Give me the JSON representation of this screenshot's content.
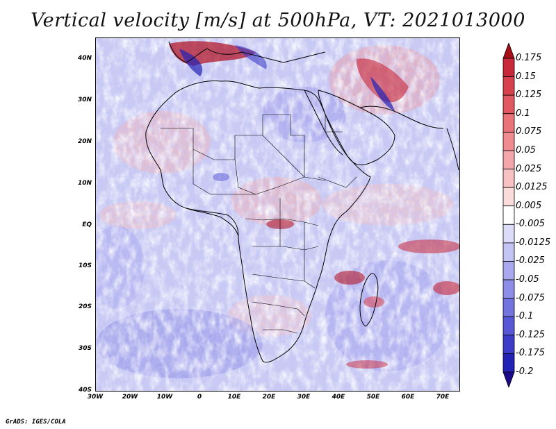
{
  "title": "Vertical velocity [m/s] at 500hPa, VT: 2021013000",
  "credit": "GrADS: IGES/COLA",
  "map": {
    "region": "Africa",
    "lat_ticks": [
      "40N",
      "30N",
      "20N",
      "10N",
      "EQ",
      "10S",
      "20S",
      "30S",
      "40S"
    ],
    "lon_ticks": [
      "30W",
      "20W",
      "10W",
      "0",
      "10E",
      "20E",
      "30E",
      "40E",
      "50E",
      "60E",
      "70E"
    ]
  },
  "colorbar": {
    "levels": [
      "0.175",
      "0.15",
      "0.125",
      "0.1",
      "0.075",
      "0.05",
      "0.025",
      "0.0125",
      "0.005",
      "-0.005",
      "-0.0125",
      "-0.025",
      "-0.05",
      "-0.075",
      "-0.1",
      "-0.125",
      "-0.175",
      "-0.2"
    ],
    "colors": [
      "#b2182b",
      "#c8283a",
      "#d8404e",
      "#e25862",
      "#ea7279",
      "#ef8c91",
      "#f4a7aa",
      "#f8c2c4",
      "#fbdcdd",
      "#ffffff",
      "#dcdcf9",
      "#c3c3f4",
      "#a9a9ef",
      "#8e8ee8",
      "#7373e0",
      "#5858d6",
      "#3c3cc9",
      "#2222b5",
      "#0c0c95"
    ],
    "top_arrow_color": "#a50f15",
    "bottom_arrow_color": "#1a0a8a"
  }
}
